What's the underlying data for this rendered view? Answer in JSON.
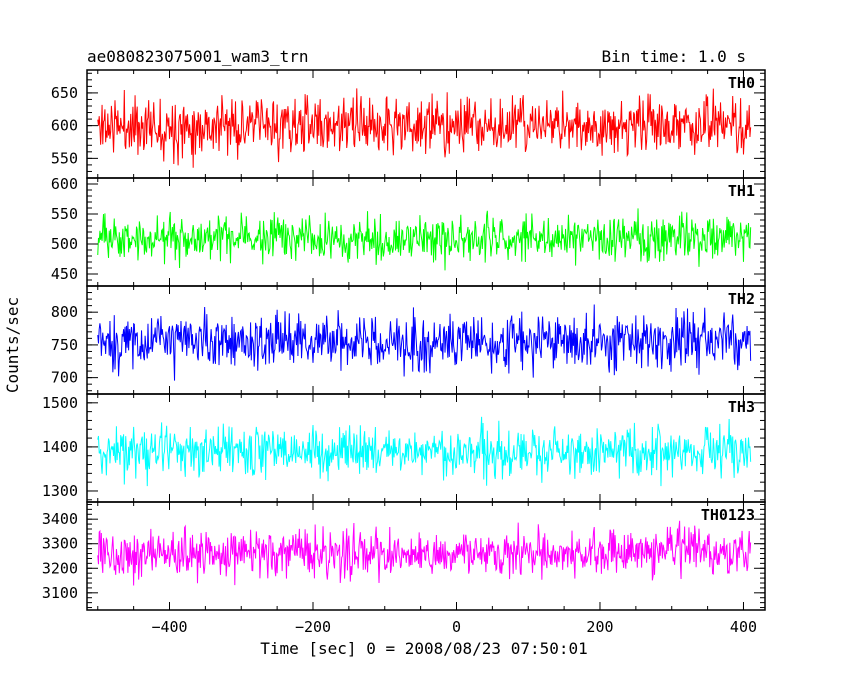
{
  "chart_data": {
    "type": "line",
    "title": "ae080823075001_wam3_trn",
    "subtitle": "Bin time: 1.0 s",
    "xlabel": "Time [sec] 0 = 2008/08/23 07:50:01",
    "ylabel": "Counts/sec",
    "xlim": [
      -515,
      430
    ],
    "x_ticks": [
      -400,
      -200,
      0,
      200,
      400
    ],
    "x_tick_labels": [
      "−400",
      "−200",
      "0",
      "200",
      "400"
    ],
    "x_range": [
      -500,
      410
    ],
    "bin_time": 1.0,
    "series": [
      {
        "name": "TH0",
        "color": "#ff0000",
        "mean": 600,
        "amp": 42,
        "ylim": [
          520,
          685
        ],
        "ticks": [
          550,
          600,
          650
        ],
        "seed": 11
      },
      {
        "name": "TH1",
        "color": "#00ff00",
        "mean": 510,
        "amp": 35,
        "ylim": [
          430,
          610
        ],
        "ticks": [
          450,
          500,
          550,
          600
        ],
        "seed": 23
      },
      {
        "name": "TH2",
        "color": "#0000ff",
        "mean": 755,
        "amp": 40,
        "ylim": [
          675,
          840
        ],
        "ticks": [
          700,
          750,
          800
        ],
        "seed": 37
      },
      {
        "name": "TH3",
        "color": "#00ffff",
        "mean": 1390,
        "amp": 55,
        "ylim": [
          1275,
          1520
        ],
        "ticks": [
          1300,
          1400,
          1500
        ],
        "seed": 41
      },
      {
        "name": "TH0123",
        "color": "#ff00ff",
        "mean": 3260,
        "amp": 90,
        "ylim": [
          3030,
          3470
        ],
        "ticks": [
          3100,
          3200,
          3300,
          3400
        ],
        "seed": 53
      }
    ]
  }
}
